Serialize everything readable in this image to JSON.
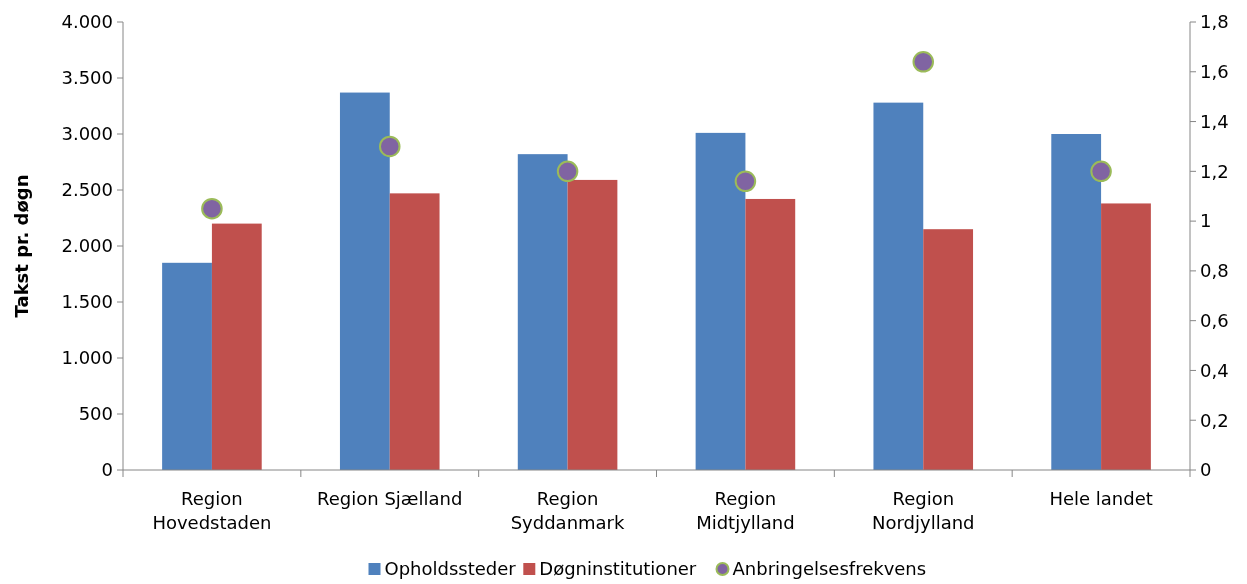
{
  "chart_data": {
    "type": "bar",
    "ylabel": "Takst pr. døgn",
    "categories": [
      "Region Hovedstaden",
      "Region Sjælland",
      "Region Syddanmark",
      "Region Midtjylland",
      "Region Nordjylland",
      "Hele landet"
    ],
    "series": [
      {
        "name": "Opholdssteder",
        "color": "#4f81bd",
        "values": [
          1850,
          3370,
          2820,
          3010,
          3280,
          3000
        ]
      },
      {
        "name": "Døgninstitutioner",
        "color": "#c0504d",
        "values": [
          2200,
          2470,
          2590,
          2420,
          2150,
          2380
        ]
      },
      {
        "name": "Anbringelsesfrekvens",
        "type": "scatter",
        "axis": "y2",
        "color": "#8064a2",
        "values": [
          1.05,
          1.3,
          1.2,
          1.16,
          1.64,
          1.2
        ]
      }
    ],
    "ylim": [
      0,
      4000
    ],
    "yticks": [
      {
        "value": 0,
        "label": "0"
      },
      {
        "value": 500,
        "label": "500"
      },
      {
        "value": 1000,
        "label": "1.000"
      },
      {
        "value": 1500,
        "label": "1.500"
      },
      {
        "value": 2000,
        "label": "2.000"
      },
      {
        "value": 2500,
        "label": "2.500"
      },
      {
        "value": 3000,
        "label": "3.000"
      },
      {
        "value": 3500,
        "label": "3.500"
      },
      {
        "value": 4000,
        "label": "4.000"
      }
    ],
    "y2lim": [
      0,
      1.8
    ],
    "y2ticks": [
      {
        "value": 0,
        "label": "0"
      },
      {
        "value": 0.2,
        "label": "0,2"
      },
      {
        "value": 0.4,
        "label": "0,4"
      },
      {
        "value": 0.6,
        "label": "0,6"
      },
      {
        "value": 0.8,
        "label": "0,8"
      },
      {
        "value": 1,
        "label": "1"
      },
      {
        "value": 1.2,
        "label": "1,2"
      },
      {
        "value": 1.4,
        "label": "1,4"
      },
      {
        "value": 1.6,
        "label": "1,6"
      },
      {
        "value": 1.8,
        "label": "1,8"
      }
    ],
    "grid": false,
    "legend": "bottom",
    "marker": "circle"
  }
}
